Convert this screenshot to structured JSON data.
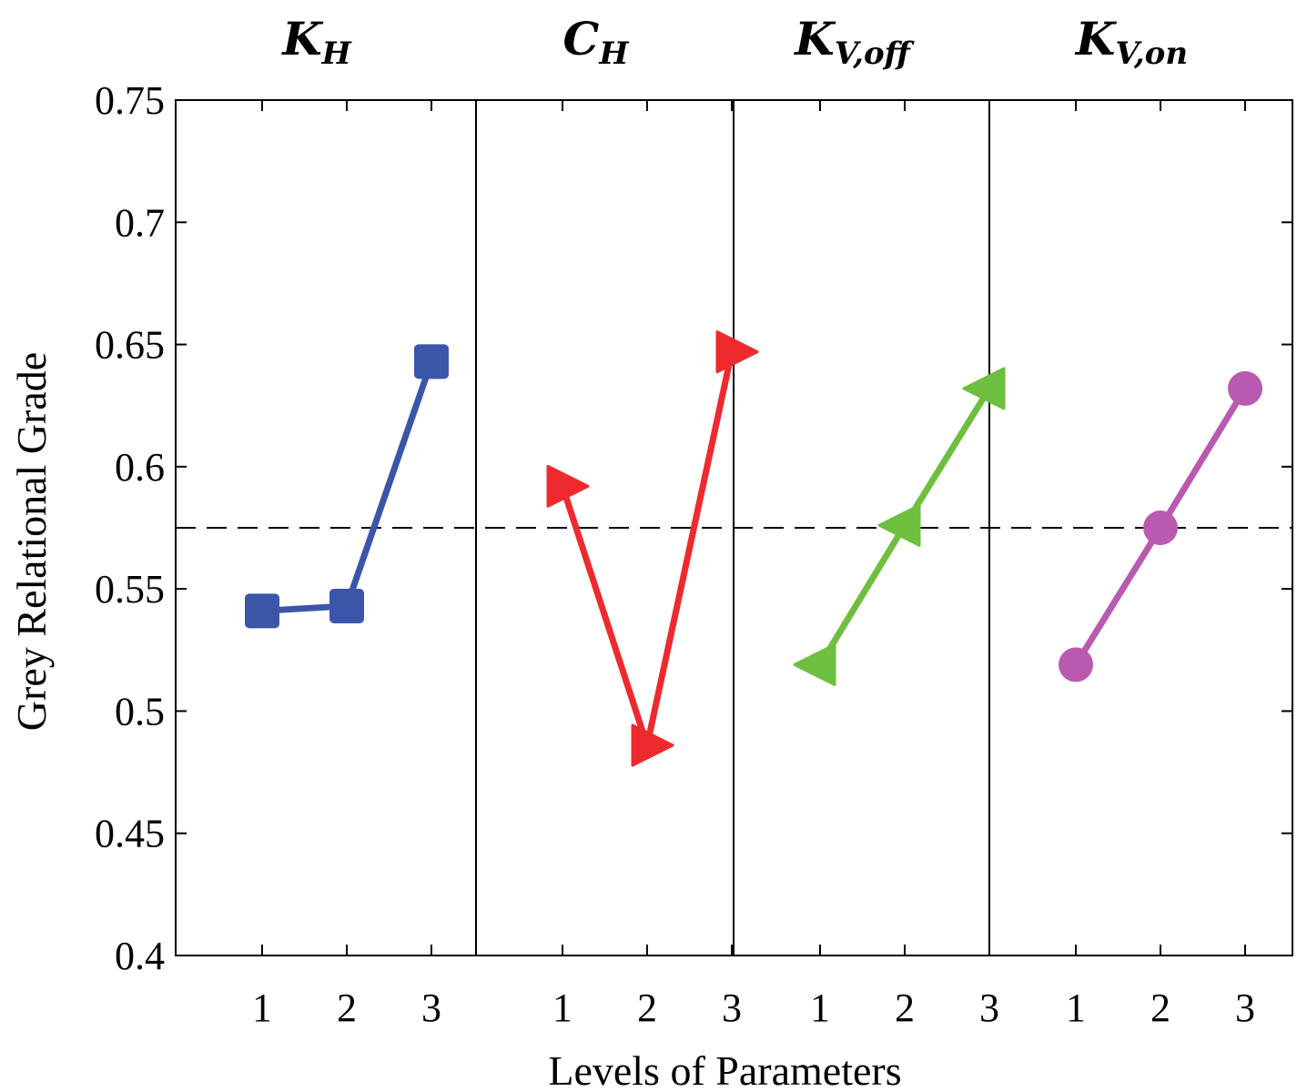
{
  "chart_data": {
    "type": "line",
    "xlabel": "Levels of Parameters",
    "ylabel": "Grey Relational Grade",
    "ylim": [
      0.4,
      0.75
    ],
    "yticks": [
      "0.4",
      "0.45",
      "0.5",
      "0.55",
      "0.6",
      "0.65",
      "0.7",
      "0.75"
    ],
    "xticks": [
      "1",
      "2",
      "3"
    ],
    "grid": false,
    "mean_line": 0.575,
    "panels": [
      {
        "title_main": "K",
        "title_sub": "H",
        "color": "#3b55a8",
        "marker": "square",
        "x": [
          1,
          2,
          3
        ],
        "values": [
          0.541,
          0.543,
          0.643
        ]
      },
      {
        "title_main": "C",
        "title_sub": "H",
        "color": "#ee2a2e",
        "marker": "triangle-right",
        "x": [
          1,
          2,
          3
        ],
        "values": [
          0.592,
          0.486,
          0.647
        ]
      },
      {
        "title_main": "K",
        "title_sub": "V,off",
        "color": "#6ebf3e",
        "marker": "triangle-left",
        "x": [
          1,
          2,
          3
        ],
        "values": [
          0.519,
          0.576,
          0.632
        ]
      },
      {
        "title_main": "K",
        "title_sub": "V,on",
        "color": "#b95ab0",
        "marker": "circle",
        "x": [
          1,
          2,
          3
        ],
        "values": [
          0.519,
          0.575,
          0.632
        ]
      }
    ]
  }
}
